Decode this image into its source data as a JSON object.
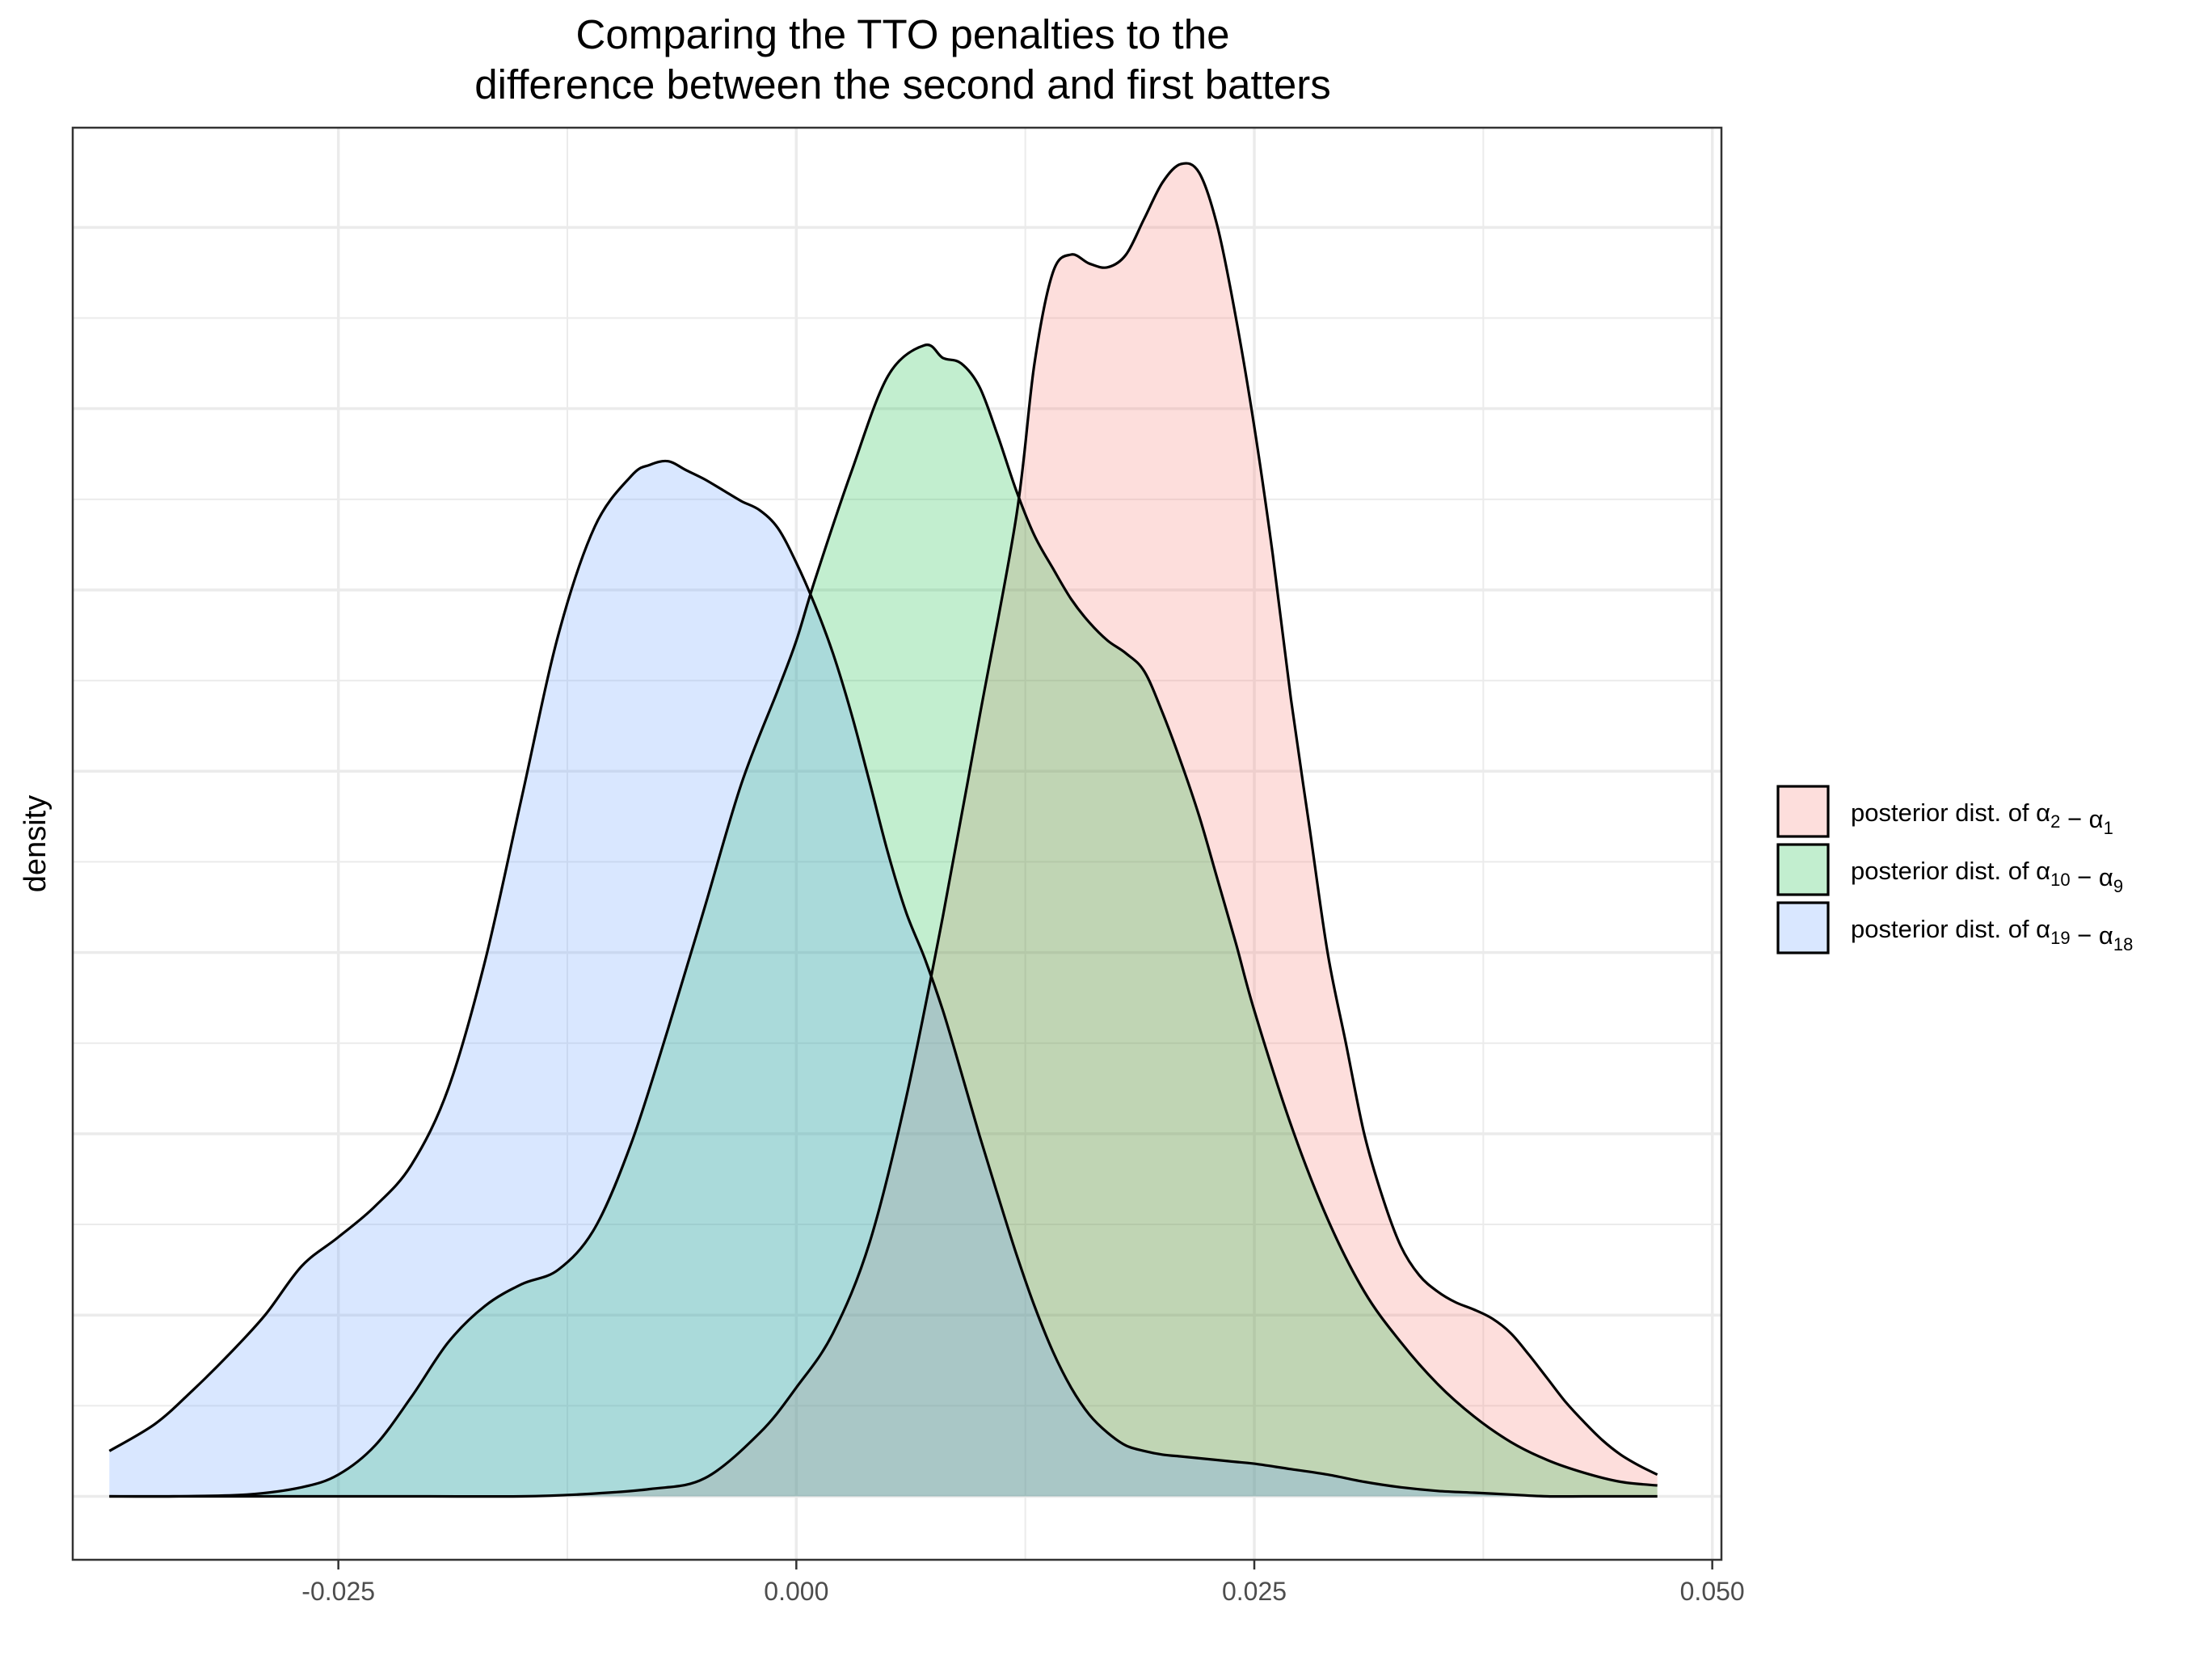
{
  "chart_data": {
    "type": "area",
    "subtype": "density",
    "title_lines": [
      "Comparing the TTO penalties to the",
      "difference between the second and first batters"
    ],
    "xlabel": "",
    "ylabel": "density",
    "xlim": [
      -0.0395,
      0.0505
    ],
    "ylim": [
      -0.0035,
      0.0755
    ],
    "x_ticks": [
      -0.025,
      0.0,
      0.025,
      0.05
    ],
    "x_tick_labels": [
      "-0.025",
      "0.000",
      "0.025",
      "0.050"
    ],
    "y_gridlines": [
      0,
      0.01,
      0.02,
      0.03,
      0.04,
      0.05,
      0.06,
      0.07
    ],
    "y_ticks_labeled": false,
    "grid": true,
    "legend_position": "right",
    "series": [
      {
        "name": "posterior dist. of α2 − α1",
        "legend": {
          "prefix": "posterior dist. of ",
          "a": "α",
          "a_sub": "2",
          "op": " − ",
          "b": "α",
          "b_sub": "1"
        },
        "fill": "#f8766d",
        "x": [
          -0.0375,
          -0.03,
          -0.025,
          -0.02,
          -0.015,
          -0.012,
          -0.008,
          -0.005,
          -0.002,
          0.0,
          0.002,
          0.004,
          0.006,
          0.008,
          0.01,
          0.012,
          0.013,
          0.014,
          0.015,
          0.016,
          0.017,
          0.018,
          0.019,
          0.02,
          0.021,
          0.022,
          0.023,
          0.024,
          0.025,
          0.026,
          0.027,
          0.028,
          0.029,
          0.03,
          0.031,
          0.032,
          0.033,
          0.034,
          0.035,
          0.036,
          0.037,
          0.038,
          0.039,
          0.04,
          0.041,
          0.042,
          0.043,
          0.044,
          0.045,
          0.046,
          0.047
        ],
        "y": [
          0.0,
          0.0,
          0.0,
          0.0,
          0.0,
          0.0001,
          0.0004,
          0.001,
          0.0035,
          0.006,
          0.009,
          0.014,
          0.022,
          0.032,
          0.043,
          0.054,
          0.0625,
          0.0675,
          0.0685,
          0.068,
          0.0678,
          0.0685,
          0.0705,
          0.0725,
          0.0735,
          0.073,
          0.07,
          0.065,
          0.059,
          0.052,
          0.044,
          0.037,
          0.03,
          0.025,
          0.02,
          0.0165,
          0.0138,
          0.0122,
          0.0113,
          0.0107,
          0.0103,
          0.0098,
          0.009,
          0.0078,
          0.0065,
          0.0052,
          0.0041,
          0.0031,
          0.0023,
          0.0017,
          0.0012
        ]
      },
      {
        "name": "posterior dist. of α10 − α9",
        "legend": {
          "prefix": "posterior dist. of ",
          "a": "α",
          "a_sub": "10",
          "op": " − ",
          "b": "α",
          "b_sub": "9"
        },
        "fill": "#7cae00",
        "fill_display": "#00ba38",
        "x": [
          -0.0375,
          -0.034,
          -0.03,
          -0.027,
          -0.025,
          -0.023,
          -0.021,
          -0.019,
          -0.017,
          -0.015,
          -0.013,
          -0.011,
          -0.009,
          -0.007,
          -0.005,
          -0.003,
          -0.001,
          0.0,
          0.001,
          0.003,
          0.005,
          0.007,
          0.008,
          0.009,
          0.01,
          0.011,
          0.012,
          0.013,
          0.014,
          0.015,
          0.016,
          0.017,
          0.018,
          0.019,
          0.02,
          0.021,
          0.022,
          0.023,
          0.024,
          0.025,
          0.027,
          0.029,
          0.031,
          0.033,
          0.035,
          0.037,
          0.039,
          0.041,
          0.043,
          0.045,
          0.047
        ],
        "y": [
          0.0,
          0.0,
          0.0001,
          0.0005,
          0.0012,
          0.0028,
          0.0055,
          0.0085,
          0.0105,
          0.0117,
          0.0125,
          0.0148,
          0.0195,
          0.0258,
          0.0325,
          0.0393,
          0.0445,
          0.0472,
          0.0505,
          0.0565,
          0.0618,
          0.0635,
          0.0628,
          0.0625,
          0.0612,
          0.0585,
          0.0555,
          0.053,
          0.0512,
          0.0495,
          0.0482,
          0.0472,
          0.0465,
          0.0455,
          0.0432,
          0.0405,
          0.0375,
          0.034,
          0.0305,
          0.0268,
          0.0205,
          0.0153,
          0.0113,
          0.0085,
          0.0062,
          0.0044,
          0.003,
          0.002,
          0.0013,
          0.0008,
          0.0006
        ]
      },
      {
        "name": "posterior dist. of α19 − α18",
        "legend": {
          "prefix": "posterior dist. of ",
          "a": "α",
          "a_sub": "19",
          "op": " − ",
          "b": "α",
          "b_sub": "18"
        },
        "fill": "#619cff",
        "x": [
          -0.0375,
          -0.035,
          -0.033,
          -0.031,
          -0.029,
          -0.027,
          -0.025,
          -0.023,
          -0.021,
          -0.019,
          -0.017,
          -0.015,
          -0.013,
          -0.011,
          -0.009,
          -0.008,
          -0.007,
          -0.006,
          -0.005,
          -0.004,
          -0.003,
          -0.002,
          -0.001,
          0.0,
          0.001,
          0.002,
          0.003,
          0.004,
          0.005,
          0.006,
          0.007,
          0.008,
          0.009,
          0.01,
          0.011,
          0.012,
          0.013,
          0.014,
          0.015,
          0.016,
          0.017,
          0.018,
          0.019,
          0.02,
          0.021,
          0.022,
          0.023,
          0.024,
          0.025,
          0.027,
          0.029,
          0.031,
          0.033,
          0.035,
          0.037,
          0.039,
          0.041,
          0.043,
          0.045,
          0.047
        ],
        "y": [
          0.0025,
          0.004,
          0.0058,
          0.0078,
          0.01,
          0.0127,
          0.0143,
          0.016,
          0.0183,
          0.0225,
          0.0295,
          0.0385,
          0.0475,
          0.0535,
          0.0563,
          0.0569,
          0.0571,
          0.0566,
          0.0561,
          0.0555,
          0.0549,
          0.0544,
          0.0534,
          0.0515,
          0.0492,
          0.0465,
          0.0432,
          0.0394,
          0.0355,
          0.0322,
          0.0297,
          0.0268,
          0.0234,
          0.0199,
          0.0166,
          0.0134,
          0.0105,
          0.008,
          0.006,
          0.0045,
          0.0035,
          0.0028,
          0.0025,
          0.0023,
          0.0022,
          0.0021,
          0.002,
          0.0019,
          0.0018,
          0.0015,
          0.0012,
          0.0008,
          0.0005,
          0.0003,
          0.0002,
          0.0001,
          0.0,
          0.0,
          0.0,
          0.0
        ]
      }
    ]
  }
}
